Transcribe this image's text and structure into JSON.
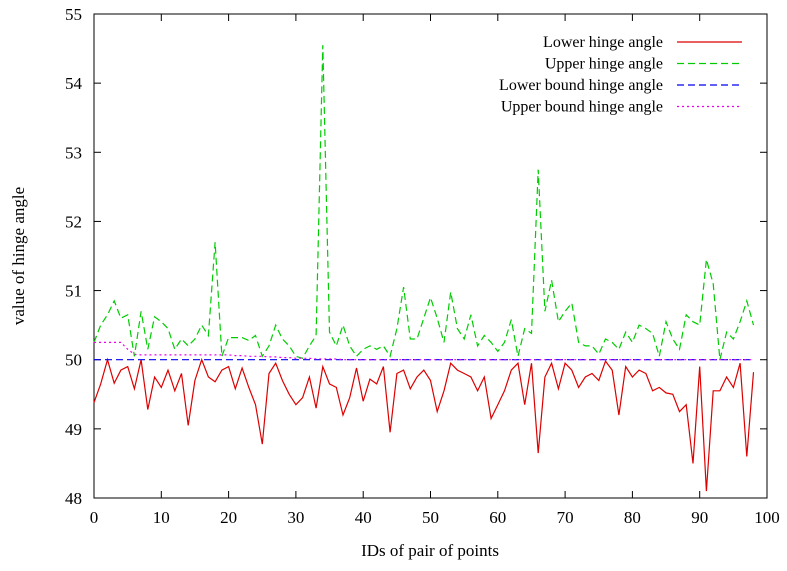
{
  "chart_data": {
    "type": "line",
    "xlabel": "IDs of pair of points",
    "ylabel": "value of hinge angle",
    "xlim": [
      0,
      100
    ],
    "ylim": [
      48,
      55
    ],
    "x_ticks": [
      0,
      10,
      20,
      30,
      40,
      50,
      60,
      70,
      80,
      90,
      100
    ],
    "y_ticks": [
      48,
      49,
      50,
      51,
      52,
      53,
      54,
      55
    ],
    "grid": false,
    "legend_position": "top-right",
    "series": [
      {
        "name": "Lower hinge angle",
        "color": "#dd0000",
        "dash": "solid",
        "x": [
          0,
          1,
          2,
          3,
          4,
          5,
          6,
          7,
          8,
          9,
          10,
          11,
          12,
          13,
          14,
          15,
          16,
          17,
          18,
          19,
          20,
          21,
          22,
          23,
          24,
          25,
          26,
          27,
          28,
          29,
          30,
          31,
          32,
          33,
          34,
          35,
          36,
          37,
          38,
          39,
          40,
          41,
          42,
          43,
          44,
          45,
          46,
          47,
          48,
          49,
          50,
          51,
          52,
          53,
          54,
          55,
          56,
          57,
          58,
          59,
          60,
          61,
          62,
          63,
          64,
          65,
          66,
          67,
          68,
          69,
          70,
          71,
          72,
          73,
          74,
          75,
          76,
          77,
          78,
          79,
          80,
          81,
          82,
          83,
          84,
          85,
          86,
          87,
          88,
          89,
          90,
          91,
          92,
          93,
          94,
          95,
          96,
          97,
          98
        ],
        "y": [
          49.38,
          49.65,
          50.0,
          49.66,
          49.85,
          49.9,
          49.58,
          50.0,
          49.28,
          49.75,
          49.6,
          49.85,
          49.55,
          49.8,
          49.05,
          49.7,
          50.0,
          49.75,
          49.68,
          49.85,
          49.9,
          49.58,
          49.88,
          49.6,
          49.35,
          48.78,
          49.8,
          49.95,
          49.7,
          49.5,
          49.35,
          49.45,
          49.75,
          49.3,
          49.9,
          49.65,
          49.6,
          49.2,
          49.45,
          49.88,
          49.4,
          49.72,
          49.65,
          49.9,
          48.95,
          49.8,
          49.85,
          49.58,
          49.75,
          49.85,
          49.7,
          49.25,
          49.55,
          49.95,
          49.85,
          49.8,
          49.75,
          49.55,
          49.75,
          49.15,
          49.35,
          49.55,
          49.85,
          49.95,
          49.35,
          49.95,
          48.65,
          49.75,
          49.95,
          49.58,
          49.95,
          49.85,
          49.6,
          49.75,
          49.8,
          49.7,
          49.98,
          49.85,
          49.2,
          49.9,
          49.75,
          49.85,
          49.8,
          49.55,
          49.6,
          49.52,
          49.5,
          49.25,
          49.35,
          48.5,
          49.9,
          48.1,
          49.55,
          49.55,
          49.75,
          49.6,
          49.95,
          48.6,
          49.82
        ]
      },
      {
        "name": "Upper hinge angle",
        "color": "#00cc00",
        "dash": "dashed",
        "x": [
          0,
          1,
          2,
          3,
          4,
          5,
          6,
          7,
          8,
          9,
          10,
          11,
          12,
          13,
          14,
          15,
          16,
          17,
          18,
          19,
          20,
          21,
          22,
          23,
          24,
          25,
          26,
          27,
          28,
          29,
          30,
          31,
          32,
          33,
          34,
          35,
          36,
          37,
          38,
          39,
          40,
          41,
          42,
          43,
          44,
          45,
          46,
          47,
          48,
          49,
          50,
          51,
          52,
          53,
          54,
          55,
          56,
          57,
          58,
          59,
          60,
          61,
          62,
          63,
          64,
          65,
          66,
          67,
          68,
          69,
          70,
          71,
          72,
          73,
          74,
          75,
          76,
          77,
          78,
          79,
          80,
          81,
          82,
          83,
          84,
          85,
          86,
          87,
          88,
          89,
          90,
          91,
          92,
          93,
          94,
          95,
          96,
          97,
          98
        ],
        "y": [
          50.25,
          50.5,
          50.65,
          50.85,
          50.6,
          50.65,
          50.05,
          50.7,
          50.15,
          50.62,
          50.55,
          50.45,
          50.15,
          50.3,
          50.2,
          50.3,
          50.5,
          50.35,
          51.7,
          50.05,
          50.32,
          50.32,
          50.32,
          50.28,
          50.35,
          50.05,
          50.2,
          50.5,
          50.3,
          50.2,
          50.05,
          50.02,
          50.2,
          50.35,
          54.55,
          50.4,
          50.2,
          50.5,
          50.2,
          50.05,
          50.15,
          50.2,
          50.15,
          50.2,
          50.05,
          50.45,
          51.05,
          50.3,
          50.3,
          50.6,
          50.9,
          50.6,
          50.25,
          50.98,
          50.45,
          50.3,
          50.65,
          50.2,
          50.35,
          50.25,
          50.12,
          50.25,
          50.58,
          50.05,
          50.45,
          50.38,
          52.75,
          50.7,
          51.15,
          50.55,
          50.7,
          50.82,
          50.25,
          50.2,
          50.2,
          50.08,
          50.3,
          50.25,
          50.15,
          50.4,
          50.25,
          50.5,
          50.45,
          50.38,
          50.05,
          50.55,
          50.3,
          50.15,
          50.65,
          50.55,
          50.5,
          51.45,
          51.1,
          50.0,
          50.4,
          50.3,
          50.55,
          50.85,
          50.5
        ]
      },
      {
        "name": "Lower bound hinge angle",
        "color": "#0000ee",
        "dash": "dashed",
        "x": [
          0,
          98
        ],
        "y": [
          50.0,
          50.0
        ]
      },
      {
        "name": "Upper bound hinge angle",
        "color": "#ee00ee",
        "dash": "dotted",
        "x": [
          0,
          1,
          2,
          3,
          4,
          5,
          6,
          7,
          8,
          9,
          10,
          11,
          12,
          13,
          14,
          15,
          16,
          17,
          18,
          19,
          20,
          21,
          22,
          23,
          24,
          25,
          26,
          27,
          28,
          29,
          30,
          31,
          32,
          33,
          34,
          35,
          36,
          37,
          38,
          39,
          40,
          41,
          42,
          43,
          44,
          45,
          46,
          47,
          48,
          49,
          50,
          51,
          52,
          53,
          54,
          55,
          56,
          57,
          58,
          59,
          60,
          61,
          62,
          63,
          64,
          65,
          66,
          67,
          68,
          69,
          70,
          71,
          72,
          73,
          74,
          75,
          76,
          77,
          78,
          79,
          80,
          81,
          82,
          83,
          84,
          85,
          86,
          87,
          88,
          89,
          90,
          91,
          92,
          93,
          94,
          95,
          96,
          97,
          98
        ],
        "y": [
          50.25,
          50.25,
          50.25,
          50.25,
          50.25,
          50.15,
          50.08,
          50.07,
          50.07,
          50.07,
          50.07,
          50.07,
          50.07,
          50.07,
          50.07,
          50.07,
          50.07,
          50.07,
          50.07,
          50.07,
          50.07,
          50.06,
          50.06,
          50.05,
          50.05,
          50.05,
          50.04,
          50.04,
          50.03,
          50.03,
          50.02,
          50.02,
          50.02,
          50.01,
          50.01,
          50.01,
          50.01,
          50.0,
          50.0,
          50.0,
          50.0,
          50.0,
          50.0,
          50.0,
          50.0,
          50.0,
          50.0,
          50.0,
          50.0,
          50.0,
          50.0,
          50.0,
          50.0,
          50.0,
          50.0,
          50.0,
          50.0,
          50.0,
          50.0,
          50.0,
          50.0,
          50.0,
          50.0,
          50.0,
          50.0,
          50.0,
          50.0,
          50.0,
          50.0,
          50.0,
          50.0,
          50.0,
          50.0,
          50.0,
          50.0,
          50.0,
          50.0,
          50.0,
          50.0,
          50.0,
          50.0,
          50.0,
          50.0,
          50.0,
          50.0,
          50.0,
          50.0,
          50.0,
          50.0,
          50.0,
          50.0,
          50.0,
          50.0,
          50.0,
          50.0,
          50.0,
          50.0,
          50.0,
          50.0
        ]
      }
    ]
  }
}
